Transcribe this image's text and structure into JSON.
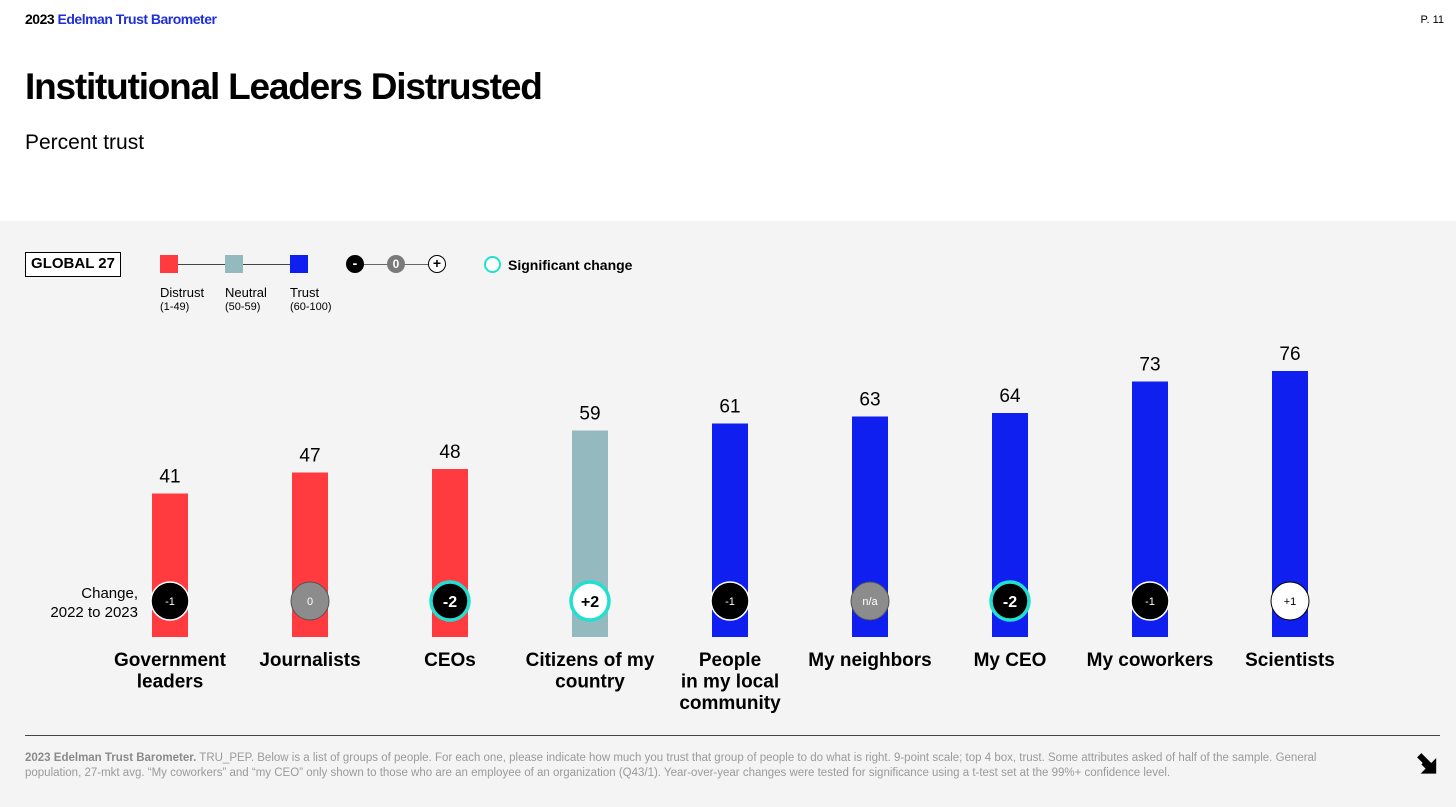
{
  "header": {
    "brand_year": "2023",
    "brand_name": "Edelman Trust Barometer",
    "page_number": "P. 11"
  },
  "title": "Institutional Leaders Distrusted",
  "subtitle": "Percent trust",
  "global_label": "GLOBAL 27",
  "legend": {
    "distrust": {
      "label": "Distrust",
      "range": "(1-49)",
      "color": "#ff3b40"
    },
    "neutral": {
      "label": "Neutral",
      "range": "(50-59)",
      "color": "#94b9be"
    },
    "trust": {
      "label": "Trust",
      "range": "(60-100)",
      "color": "#0f1ff0"
    },
    "change_symbols": [
      "-",
      "0",
      "+"
    ],
    "significant_change": "Significant change",
    "significant_color": "#22e0d0"
  },
  "change_label": [
    "Change,",
    "2022 to 2023"
  ],
  "chart_data": {
    "type": "bar",
    "title": "Institutional Leaders Distrusted",
    "subtitle": "Percent trust",
    "ylim": [
      0,
      100
    ],
    "categories": [
      [
        "Government",
        "leaders"
      ],
      [
        "Journalists"
      ],
      [
        "CEOs"
      ],
      [
        "Citizens of my",
        "country"
      ],
      [
        "People",
        "in my local",
        "community"
      ],
      [
        "My neighbors"
      ],
      [
        "My CEO"
      ],
      [
        "My coworkers"
      ],
      [
        "Scientists"
      ]
    ],
    "values": [
      41,
      47,
      48,
      59,
      61,
      63,
      64,
      73,
      76
    ],
    "levels": [
      "distrust",
      "distrust",
      "distrust",
      "neutral",
      "trust",
      "trust",
      "trust",
      "trust",
      "trust"
    ],
    "changes": [
      "-1",
      "0",
      "-2",
      "+2",
      "-1",
      "n/a",
      "-2",
      "-1",
      "+1"
    ],
    "change_significant": [
      false,
      false,
      true,
      true,
      false,
      false,
      true,
      false,
      false
    ]
  },
  "footnote": {
    "bold": "2023 Edelman Trust Barometer.",
    "text": " TRU_PEP. Below is a list of groups of people. For each one, please indicate how much you trust that group of people to do what is right. 9-point scale; top 4 box, trust. Some attributes asked of half of the sample. General population, 27-mkt avg. “My coworkers” and “my CEO” only shown to those who are an employee of an organization (Q43/1). Year-over-year changes were tested for significance using a t-test set at the 99%+ confidence level."
  }
}
